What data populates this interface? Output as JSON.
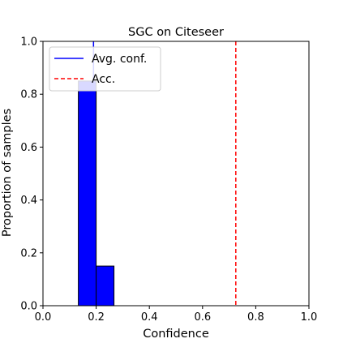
{
  "chart_data": {
    "type": "bar",
    "title": "SGC on Citeseer",
    "xlabel": "Confidence",
    "ylabel": "Proportion of samples",
    "xlim": [
      0.0,
      1.0
    ],
    "ylim": [
      0.0,
      1.0
    ],
    "xticks": [
      "0.0",
      "0.2",
      "0.4",
      "0.6",
      "0.8",
      "1.0"
    ],
    "yticks": [
      "0.0",
      "0.2",
      "0.4",
      "0.6",
      "0.8",
      "1.0"
    ],
    "grid": false,
    "legend_position": "top-left",
    "bars": [
      {
        "x0": 0.133,
        "x1": 0.2,
        "value": 0.85
      },
      {
        "x0": 0.2,
        "x1": 0.267,
        "value": 0.15
      }
    ],
    "bar_color": "#0000ff",
    "lines": [
      {
        "name": "Avg. conf.",
        "x": 0.19,
        "style": "solid",
        "color": "#0000ff"
      },
      {
        "name": "Acc.",
        "x": 0.725,
        "style": "dashed",
        "color": "#ff0000"
      }
    ]
  }
}
